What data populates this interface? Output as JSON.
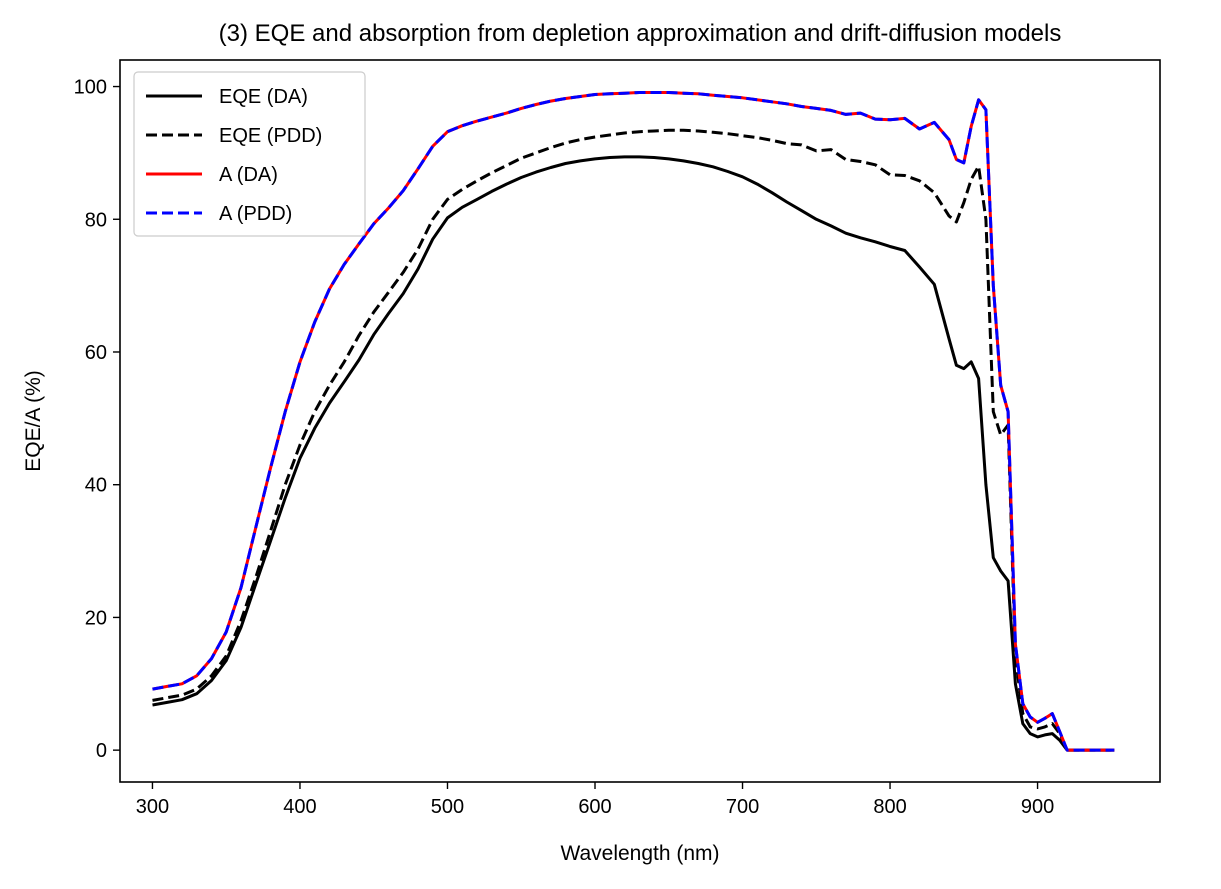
{
  "chart_data": {
    "type": "line",
    "title": "(3) EQE and absorption from depletion approximation and drift-diffusion models",
    "xlabel": "Wavelength (nm)",
    "ylabel": "EQE/A (%)",
    "xlim": [
      278,
      983
    ],
    "ylim": [
      -4.8,
      104
    ],
    "xticks": [
      300,
      400,
      500,
      600,
      700,
      800,
      900
    ],
    "yticks": [
      0,
      20,
      40,
      60,
      80,
      100
    ],
    "grid": false,
    "legend_position": "top-left",
    "series": [
      {
        "name": "EQE (DA)",
        "color": "#000000",
        "dash": "solid",
        "x": [
          300,
          310,
          320,
          330,
          340,
          350,
          360,
          370,
          380,
          390,
          400,
          410,
          420,
          430,
          440,
          450,
          460,
          470,
          480,
          490,
          500,
          510,
          520,
          530,
          540,
          550,
          560,
          570,
          580,
          590,
          600,
          610,
          620,
          630,
          640,
          650,
          660,
          670,
          680,
          690,
          700,
          710,
          720,
          730,
          740,
          750,
          760,
          770,
          780,
          790,
          800,
          810,
          820,
          830,
          840,
          845,
          850,
          855,
          860,
          865,
          870,
          875,
          880,
          885,
          890,
          895,
          900,
          905,
          910,
          915,
          920,
          930,
          940,
          952
        ],
        "y": [
          6.8,
          7.2,
          7.6,
          8.5,
          10.5,
          13.5,
          18.5,
          25.0,
          31.5,
          38.0,
          44.0,
          48.5,
          52.3,
          55.5,
          58.8,
          62.6,
          65.8,
          68.8,
          72.5,
          77.0,
          80.2,
          81.8,
          83.0,
          84.2,
          85.3,
          86.3,
          87.1,
          87.8,
          88.4,
          88.8,
          89.1,
          89.3,
          89.4,
          89.4,
          89.3,
          89.1,
          88.8,
          88.4,
          87.9,
          87.2,
          86.4,
          85.3,
          84.0,
          82.6,
          81.3,
          80.0,
          79.0,
          77.9,
          77.2,
          76.6,
          75.9,
          75.3,
          72.8,
          70.2,
          62.0,
          58.0,
          57.5,
          58.5,
          56.0,
          40.0,
          29.0,
          27.0,
          25.5,
          10.0,
          4.0,
          2.5,
          2.0,
          2.3,
          2.5,
          1.5,
          0.0,
          0.0,
          0.0,
          0.0
        ]
      },
      {
        "name": "EQE (PDD)",
        "color": "#000000",
        "dash": "dashed",
        "x": [
          300,
          310,
          320,
          330,
          340,
          350,
          360,
          370,
          380,
          390,
          400,
          410,
          420,
          430,
          440,
          450,
          460,
          470,
          480,
          490,
          500,
          510,
          520,
          530,
          540,
          550,
          560,
          570,
          580,
          590,
          600,
          610,
          620,
          630,
          640,
          650,
          660,
          670,
          680,
          690,
          700,
          710,
          720,
          730,
          740,
          750,
          760,
          770,
          780,
          790,
          800,
          810,
          820,
          830,
          840,
          845,
          850,
          855,
          860,
          865,
          870,
          875,
          880,
          885,
          890,
          895,
          900,
          905,
          910,
          915,
          920,
          930,
          940,
          952
        ],
        "y": [
          7.5,
          7.9,
          8.3,
          9.2,
          11.2,
          14.2,
          19.5,
          26.0,
          33.0,
          40.0,
          46.0,
          51.0,
          55.0,
          58.5,
          62.5,
          66.0,
          69.0,
          72.0,
          75.5,
          80.0,
          83.0,
          84.5,
          85.8,
          87.0,
          88.1,
          89.2,
          90.0,
          90.8,
          91.5,
          92.0,
          92.4,
          92.7,
          93.0,
          93.2,
          93.3,
          93.4,
          93.4,
          93.3,
          93.1,
          92.9,
          92.6,
          92.3,
          91.9,
          91.4,
          91.2,
          90.3,
          90.5,
          89.0,
          88.7,
          88.2,
          86.7,
          86.6,
          85.8,
          84.0,
          80.5,
          79.6,
          82.5,
          86.0,
          88.0,
          80.0,
          51.0,
          47.5,
          49.0,
          14.0,
          5.5,
          3.5,
          3.2,
          3.5,
          4.0,
          2.5,
          0.0,
          0.0,
          0.0,
          0.0
        ]
      },
      {
        "name": "A (DA)",
        "color": "#ff0000",
        "dash": "solid",
        "x": [
          300,
          310,
          320,
          330,
          340,
          350,
          360,
          370,
          380,
          390,
          400,
          410,
          420,
          430,
          440,
          450,
          460,
          470,
          480,
          490,
          500,
          510,
          520,
          530,
          540,
          550,
          560,
          570,
          580,
          590,
          600,
          610,
          620,
          630,
          640,
          650,
          660,
          670,
          680,
          690,
          700,
          710,
          720,
          730,
          740,
          750,
          760,
          770,
          780,
          790,
          800,
          810,
          820,
          830,
          840,
          845,
          850,
          855,
          860,
          865,
          870,
          875,
          880,
          885,
          890,
          895,
          900,
          905,
          910,
          915,
          920,
          930,
          940,
          952
        ],
        "y": [
          9.2,
          9.6,
          10.0,
          11.2,
          13.8,
          17.8,
          24.5,
          33.5,
          42.5,
          51.0,
          58.5,
          64.5,
          69.5,
          73.2,
          76.3,
          79.3,
          81.7,
          84.3,
          87.6,
          91.0,
          93.2,
          94.1,
          94.8,
          95.4,
          96.0,
          96.7,
          97.3,
          97.8,
          98.2,
          98.5,
          98.8,
          98.9,
          99.0,
          99.1,
          99.1,
          99.1,
          99.0,
          98.9,
          98.7,
          98.5,
          98.3,
          98.0,
          97.7,
          97.4,
          97.0,
          96.7,
          96.4,
          95.8,
          96.0,
          95.1,
          95.0,
          95.2,
          93.6,
          94.6,
          92.0,
          89.0,
          88.5,
          94.0,
          98.0,
          96.5,
          70.0,
          55.0,
          51.0,
          16.0,
          7.0,
          5.0,
          4.2,
          4.8,
          5.5,
          2.8,
          0.0,
          0.0,
          0.0,
          0.0
        ]
      },
      {
        "name": "A (PDD)",
        "color": "#0000ff",
        "dash": "dashed",
        "x": [
          300,
          310,
          320,
          330,
          340,
          350,
          360,
          370,
          380,
          390,
          400,
          410,
          420,
          430,
          440,
          450,
          460,
          470,
          480,
          490,
          500,
          510,
          520,
          530,
          540,
          550,
          560,
          570,
          580,
          590,
          600,
          610,
          620,
          630,
          640,
          650,
          660,
          670,
          680,
          690,
          700,
          710,
          720,
          730,
          740,
          750,
          760,
          770,
          780,
          790,
          800,
          810,
          820,
          830,
          840,
          845,
          850,
          855,
          860,
          865,
          870,
          875,
          880,
          885,
          890,
          895,
          900,
          905,
          910,
          915,
          920,
          930,
          940,
          952
        ],
        "y": [
          9.2,
          9.6,
          10.0,
          11.2,
          13.8,
          17.8,
          24.5,
          33.5,
          42.5,
          51.0,
          58.5,
          64.5,
          69.5,
          73.2,
          76.3,
          79.3,
          81.7,
          84.3,
          87.6,
          91.0,
          93.2,
          94.1,
          94.8,
          95.4,
          96.0,
          96.7,
          97.3,
          97.8,
          98.2,
          98.5,
          98.8,
          98.9,
          99.0,
          99.1,
          99.1,
          99.1,
          99.0,
          98.9,
          98.7,
          98.5,
          98.3,
          98.0,
          97.7,
          97.4,
          97.0,
          96.7,
          96.4,
          95.8,
          96.0,
          95.1,
          95.0,
          95.2,
          93.6,
          94.6,
          92.0,
          89.0,
          88.5,
          94.0,
          98.0,
          96.5,
          70.0,
          55.0,
          51.0,
          16.0,
          7.0,
          5.0,
          4.2,
          4.8,
          5.5,
          2.8,
          0.0,
          0.0,
          0.0,
          0.0
        ]
      }
    ]
  }
}
